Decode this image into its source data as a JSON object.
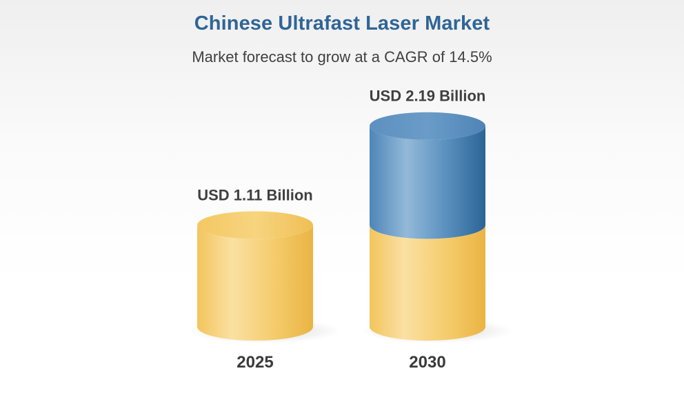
{
  "title": "Chinese Ultrafast Laser Market",
  "subtitle": "Market forecast to grow at a CAGR of 14.5%",
  "colors": {
    "title": "#2f6596",
    "base_segment": "#f3c866",
    "growth_segment": "#4f89b8",
    "text": "#404040"
  },
  "chart_data": {
    "type": "bar",
    "style": "3d-cylinder",
    "categories": [
      "2025",
      "2030"
    ],
    "values": [
      1.11,
      2.19
    ],
    "value_labels": [
      "USD 1.11 Billion",
      "USD 2.19 Billion"
    ],
    "unit": "USD Billion",
    "title": "Chinese Ultrafast Laser Market",
    "subtitle": "Market forecast to grow at a CAGR of 14.5%",
    "cagr": "14.5%",
    "xlabel": "",
    "ylabel": "",
    "grid": false,
    "legend": "none"
  }
}
